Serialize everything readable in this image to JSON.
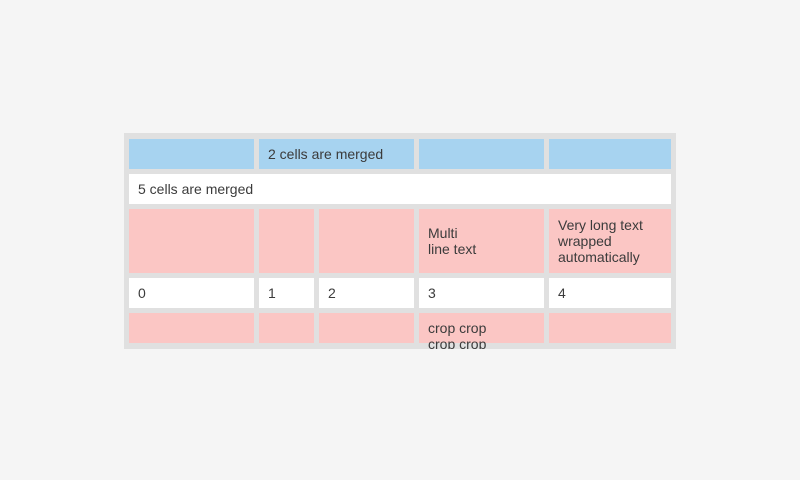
{
  "colors": {
    "page_bg": "#f5f5f5",
    "table_bg": "#e0e0e0",
    "cell_blue": "#a7d3f0",
    "cell_pink": "#fbc6c4",
    "cell_white": "#ffffff",
    "text": "#3b3b3b"
  },
  "table": {
    "rows": [
      {
        "style": "blue",
        "cells": [
          {
            "text": ""
          },
          {
            "text": "2 cells are merged",
            "colspan": 2
          },
          {
            "text": ""
          },
          {
            "text": ""
          }
        ]
      },
      {
        "style": "white",
        "cells": [
          {
            "text": "5 cells are merged",
            "colspan": 5,
            "align": "right"
          }
        ]
      },
      {
        "style": "pink",
        "cells": [
          {
            "text": ""
          },
          {
            "text": ""
          },
          {
            "text": ""
          },
          {
            "text": "Multi\nline text"
          },
          {
            "text": "Very long text wrapped automatically"
          }
        ]
      },
      {
        "style": "white",
        "cells": [
          {
            "text": "0",
            "align": "right"
          },
          {
            "text": "1"
          },
          {
            "text": "2"
          },
          {
            "text": "3"
          },
          {
            "text": "4"
          }
        ]
      },
      {
        "style": "pink",
        "cells": [
          {
            "text": ""
          },
          {
            "text": ""
          },
          {
            "text": ""
          },
          {
            "text": "crop crop\ncrop crop",
            "cropped": true
          },
          {
            "text": ""
          }
        ]
      }
    ]
  }
}
